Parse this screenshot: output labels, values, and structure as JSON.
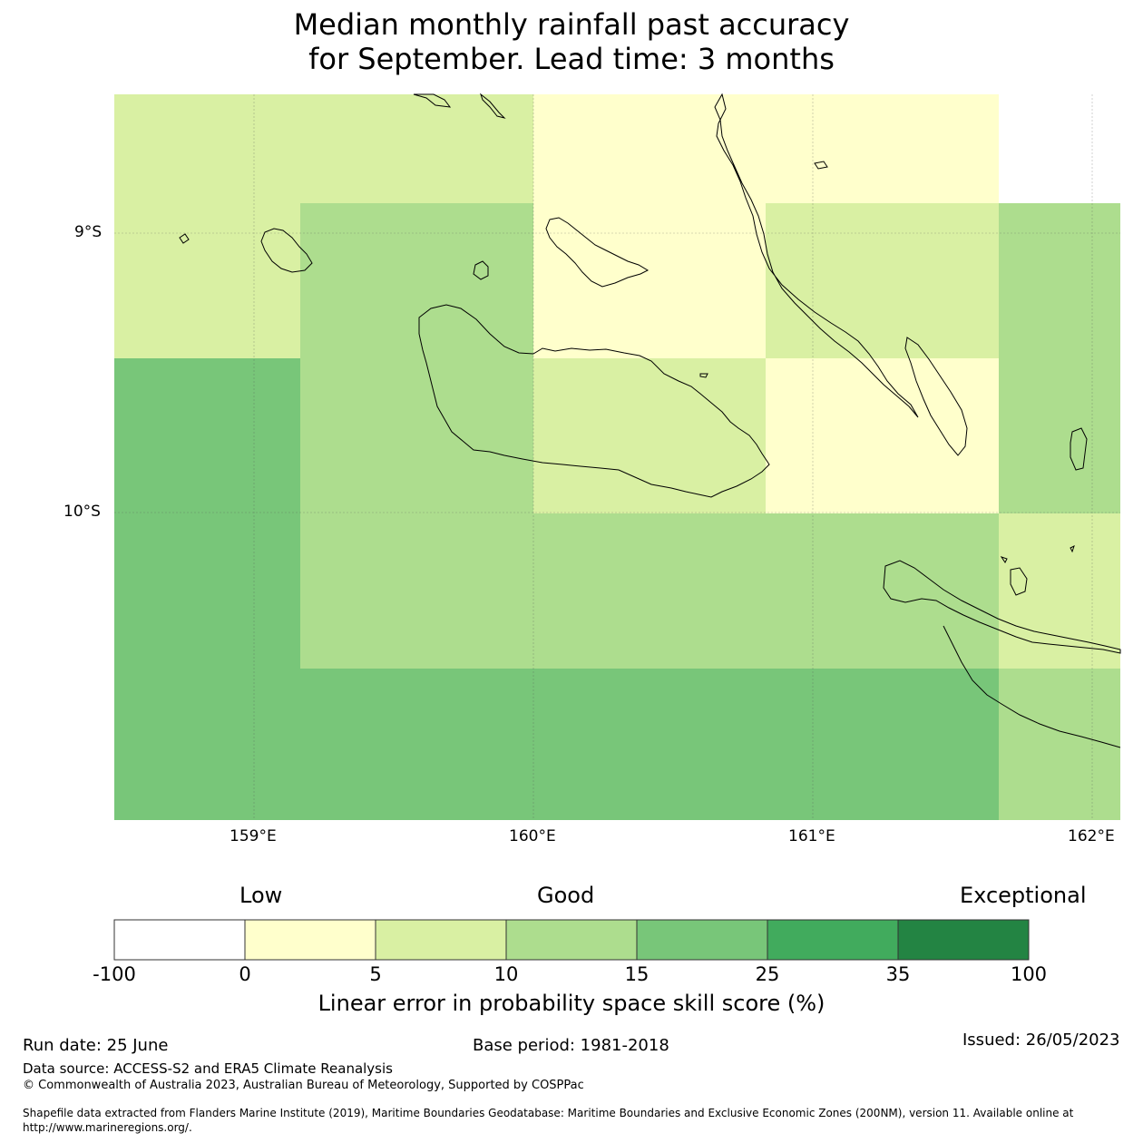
{
  "title": {
    "line1": "Median monthly rainfall past accuracy",
    "line2": "for September. Lead time: 3 months"
  },
  "map": {
    "lat_labels": [
      "9°S",
      "10°S"
    ],
    "lon_labels": [
      "159°E",
      "160°E",
      "161°E",
      "162°E"
    ],
    "category_colors": {
      "0": "#ffffcc",
      "5": "#d9f0a3",
      "10": "#addd8e",
      "15": "#78c679",
      "25": "#41ab5d",
      "35": "#238443"
    },
    "grid_cells_skill_category": [
      [
        "5",
        "5",
        "0",
        "0",
        "none"
      ],
      [
        "5",
        "10",
        "0",
        "5",
        "10"
      ],
      [
        "15",
        "10",
        "5",
        "0",
        "10"
      ],
      [
        "15",
        "10",
        "10",
        "10",
        "5"
      ],
      [
        "15",
        "15",
        "15",
        "15",
        "10"
      ]
    ]
  },
  "colorbar": {
    "categories": {
      "low": "Low",
      "good": "Good",
      "exceptional": "Exceptional"
    },
    "ticks": [
      "-100",
      "0",
      "5",
      "10",
      "15",
      "25",
      "35",
      "100"
    ],
    "colors": [
      "#ffffff",
      "#ffffcc",
      "#d9f0a3",
      "#addd8e",
      "#78c679",
      "#41ab5d",
      "#238443"
    ],
    "label": "Linear error in probability space skill score (%)"
  },
  "footer": {
    "run_date": "Run date: 25 June",
    "base_period": "Base period: 1981-2018",
    "issued": "Issued: 26/05/2023",
    "data_source": "Data source: ACCESS-S2 and ERA5 Climate Reanalysis",
    "copyright": "© Commonwealth of Australia 2023, Australian Bureau of Meteorology, Supported by COSPPac",
    "shapefile_1": "Shapefile data extracted from Flanders Marine Institute (2019), Maritime Boundaries Geodatabase: Maritime Boundaries and Exclusive Economic Zones (200NM), version 11. Available online at",
    "shapefile_2": "http://www.marineregions.org/."
  }
}
